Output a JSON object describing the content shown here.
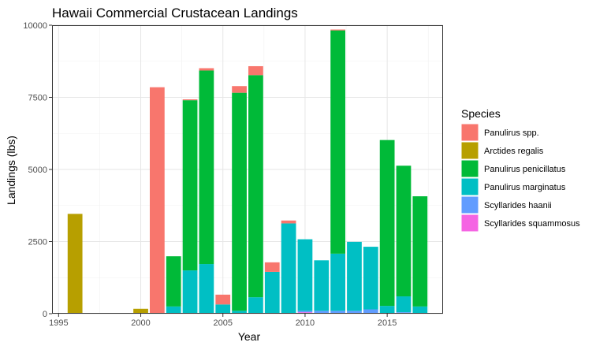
{
  "chart_data": {
    "type": "bar",
    "stacked": true,
    "title": "Hawaii Commercial Crustacean Landings",
    "xlabel": "Year",
    "ylabel": "Landings (lbs)",
    "xlim": [
      1994.6,
      2018.4
    ],
    "ylim": [
      0,
      10000
    ],
    "x_ticks": [
      1995,
      2000,
      2005,
      2010,
      2015
    ],
    "y_ticks": [
      0,
      2500,
      5000,
      7500,
      10000
    ],
    "y_tick_labels": [
      "0",
      "2500",
      "5000",
      "7500",
      "10000"
    ],
    "grid": true,
    "legend": {
      "title": "Species",
      "position": "right"
    },
    "x": [
      1996,
      2000,
      2001,
      2002,
      2003,
      2004,
      2005,
      2006,
      2007,
      2008,
      2009,
      2010,
      2011,
      2012,
      2013,
      2014,
      2015,
      2016,
      2017
    ],
    "series": [
      {
        "name": "Scyllarides squammosus",
        "color": "#F564E3",
        "values": [
          0,
          0,
          0,
          0,
          0,
          0,
          0,
          0,
          0,
          0,
          0,
          50,
          0,
          0,
          0,
          0,
          0,
          0,
          0
        ]
      },
      {
        "name": "Scyllarides haanii",
        "color": "#619CFF",
        "values": [
          0,
          0,
          0,
          0,
          0,
          0,
          0,
          0,
          0,
          0,
          0,
          50,
          100,
          100,
          100,
          150,
          0,
          50,
          0
        ]
      },
      {
        "name": "Panulirus marginatus",
        "color": "#00BFC4",
        "values": [
          0,
          0,
          0,
          250,
          1500,
          1720,
          320,
          100,
          570,
          1450,
          3130,
          2480,
          1750,
          1980,
          2390,
          2170,
          270,
          550,
          250
        ]
      },
      {
        "name": "Panulirus penicillatus",
        "color": "#00BA38",
        "values": [
          0,
          0,
          0,
          1740,
          5900,
          6710,
          0,
          7560,
          7700,
          0,
          0,
          0,
          0,
          7740,
          0,
          0,
          5750,
          4530,
          3820
        ]
      },
      {
        "name": "Arctides regalis",
        "color": "#B79F00",
        "values": [
          3460,
          170,
          0,
          0,
          0,
          0,
          0,
          0,
          0,
          0,
          0,
          0,
          0,
          0,
          0,
          0,
          0,
          0,
          0
        ]
      },
      {
        "name": "Panulirus spp.",
        "color": "#F8766D",
        "values": [
          0,
          0,
          7850,
          0,
          30,
          80,
          340,
          230,
          310,
          330,
          100,
          0,
          0,
          30,
          0,
          0,
          0,
          0,
          0
        ]
      }
    ],
    "legend_order": [
      "Panulirus spp.",
      "Arctides regalis",
      "Panulirus penicillatus",
      "Panulirus marginatus",
      "Scyllarides haanii",
      "Scyllarides squammosus"
    ]
  }
}
